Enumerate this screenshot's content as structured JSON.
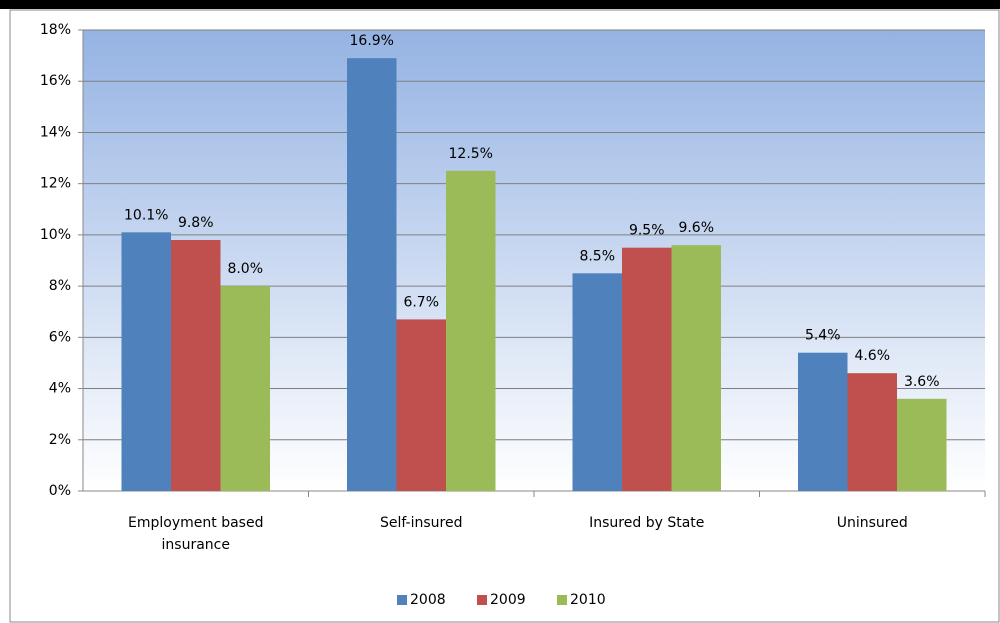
{
  "chart_data": {
    "type": "bar",
    "categories": [
      "Employment based insurance",
      "Self-insured",
      "Insured by State",
      "Uninsured"
    ],
    "series": [
      {
        "name": "2008",
        "color": "#4f81bd",
        "values": [
          10.1,
          16.9,
          8.5,
          5.4
        ],
        "value_labels": [
          "10.1%",
          "16.9%",
          "8.5%",
          "5.4%"
        ]
      },
      {
        "name": "2009",
        "color": "#c0504d",
        "values": [
          9.8,
          6.7,
          9.5,
          4.6
        ],
        "value_labels": [
          "9.8%",
          "6.7%",
          "9.5%",
          "4.6%"
        ]
      },
      {
        "name": "2010",
        "color": "#9bbb59",
        "values": [
          8.0,
          12.5,
          9.6,
          3.6
        ],
        "value_labels": [
          "8.0%",
          "12.5%",
          "9.6%",
          "3.6%"
        ]
      }
    ],
    "ylim": [
      0,
      18
    ],
    "yticks": [
      {
        "value": 0,
        "label": "0%"
      },
      {
        "value": 2,
        "label": "2%"
      },
      {
        "value": 4,
        "label": "4%"
      },
      {
        "value": 6,
        "label": "6%"
      },
      {
        "value": 8,
        "label": "8%"
      },
      {
        "value": 10,
        "label": "10%"
      },
      {
        "value": 12,
        "label": "12%"
      },
      {
        "value": 14,
        "label": "14%"
      },
      {
        "value": 16,
        "label": "16%"
      },
      {
        "value": 18,
        "label": "18%"
      }
    ],
    "grid": true,
    "legend": "bottom"
  }
}
